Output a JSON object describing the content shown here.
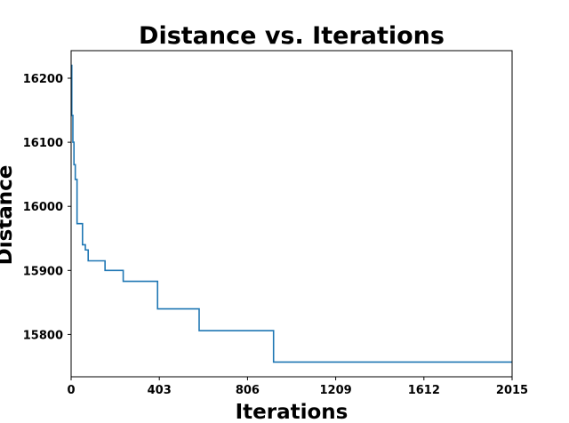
{
  "chart_data": {
    "type": "line",
    "title": "Distance vs. Iterations",
    "xlabel": "Iterations",
    "ylabel": "Distance",
    "xlim": [
      0,
      2015
    ],
    "ylim": [
      15734,
      16243
    ],
    "xticks": [
      0,
      403,
      806,
      1209,
      1612,
      2015
    ],
    "yticks": [
      15800,
      15900,
      16000,
      16100,
      16200
    ],
    "grid": false,
    "line_color": "#1f77b4",
    "series": [
      {
        "step": "post",
        "x": [
          0,
          3,
          8,
          13,
          19,
          27,
          52,
          65,
          78,
          155,
          238,
          395,
          585,
          925,
          2015
        ],
        "y": [
          16220,
          16142,
          16100,
          16065,
          16042,
          15973,
          15940,
          15932,
          15915,
          15900,
          15883,
          15840,
          15806,
          15757,
          15757
        ]
      }
    ]
  }
}
